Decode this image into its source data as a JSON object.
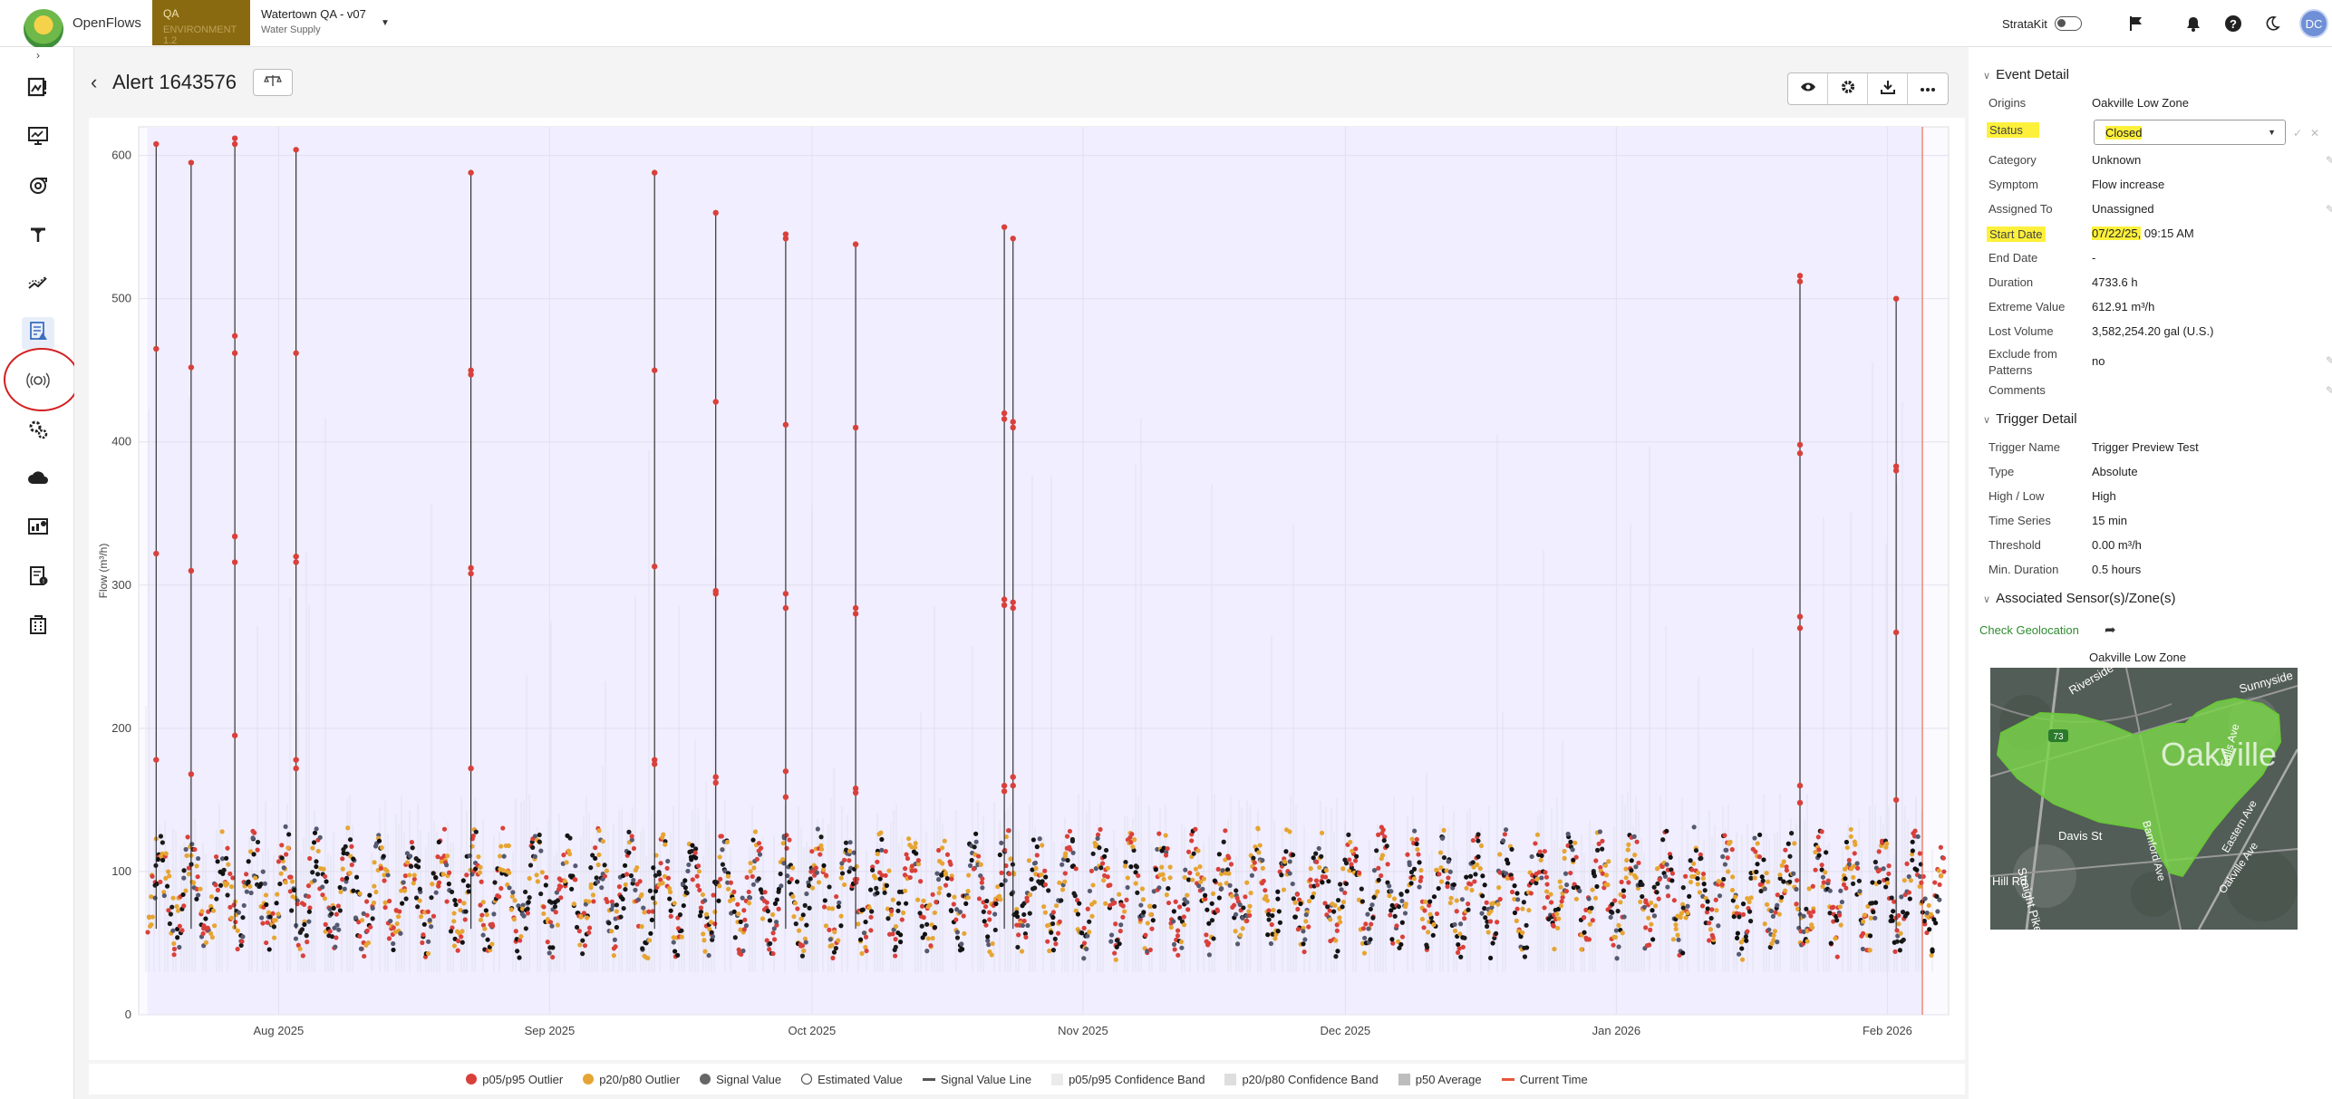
{
  "app": {
    "name": "OpenFlows",
    "env_label": "QA",
    "env_sub": "ENVIRONMENT 1.2",
    "project_title": "Watertown QA - v07",
    "project_sub": "Water Supply"
  },
  "topbar": {
    "stratakit_label": "StrataKit",
    "avatar_initials": "DC"
  },
  "sidebar": {
    "items": [
      "map-alert-icon",
      "monitor-icon",
      "pump-icon",
      "hydrant-icon",
      "trend-icon",
      "alert-report-icon",
      "sensor-icon",
      "settings-icon",
      "cloud-icon",
      "dashboard-icon",
      "report-icon",
      "building-icon"
    ],
    "active_item": "alert-report-icon"
  },
  "page": {
    "title": "Alert 1643576"
  },
  "toolbar": {
    "icons": [
      "eye-icon",
      "gear-icon",
      "download-icon",
      "more-icon"
    ]
  },
  "event_detail": {
    "section_title": "Event Detail",
    "origins_label": "Origins",
    "origins_value": "Oakville Low Zone",
    "status_label": "Status",
    "status_value": "Closed",
    "category_label": "Category",
    "category_value": "Unknown",
    "symptom_label": "Symptom",
    "symptom_value": "Flow increase",
    "assigned_label": "Assigned To",
    "assigned_value": "Unassigned",
    "start_label": "Start Date",
    "start_date": "07/22/25,",
    "start_time": " 09:15 AM",
    "end_label": "End Date",
    "end_value": "-",
    "duration_label": "Duration",
    "duration_value": "4733.6 h",
    "extreme_label": "Extreme Value",
    "extreme_value": "612.91 m³/h",
    "lost_label": "Lost Volume",
    "lost_value": "3,582,254.20 gal (U.S.)",
    "exclude_label_1": "Exclude from",
    "exclude_label_2": "Patterns",
    "exclude_value": "no",
    "comments_label": "Comments"
  },
  "trigger_detail": {
    "section_title": "Trigger Detail",
    "name_label": "Trigger Name",
    "name_value": "Trigger Preview Test",
    "type_label": "Type",
    "type_value": "Absolute",
    "hl_label": "High / Low",
    "hl_value": "High",
    "ts_label": "Time Series",
    "ts_value": "15 min",
    "threshold_label": "Threshold",
    "threshold_value": "0.00 m³/h",
    "min_label": "Min. Duration",
    "min_value": "0.5 hours"
  },
  "associated": {
    "section_title": "Associated Sensor(s)/Zone(s)",
    "geo_link": "Check Geolocation",
    "map_caption": "Oakville Low Zone",
    "map_labels": {
      "zone": "Oakville",
      "s1": "Riverside St",
      "s2": "Davis St",
      "s3": "Straight Pike",
      "s4": "Bamford Ave",
      "s5": "Oakville Ave",
      "s6": "Falls Ave",
      "s7": "Eastern Ave",
      "s8": "Sunnyside",
      "s9": "Hill Rd",
      "route": "73"
    }
  },
  "legend": {
    "items": [
      {
        "label": "p05/p95 Outlier",
        "shape": "dot",
        "color": "#d9403a"
      },
      {
        "label": "p20/p80 Outlier",
        "shape": "dot",
        "color": "#e6a532"
      },
      {
        "label": "Signal Value",
        "shape": "dot",
        "color": "#666666"
      },
      {
        "label": "Estimated Value",
        "shape": "ring",
        "color": "#444444"
      },
      {
        "label": "Signal Value Line",
        "shape": "line",
        "color": "#555555"
      },
      {
        "label": "p05/p95 Confidence Band",
        "shape": "square",
        "color": "#ebebeb"
      },
      {
        "label": "p20/p80 Confidence Band",
        "shape": "square",
        "color": "#dedede"
      },
      {
        "label": "p50 Average",
        "shape": "square",
        "color": "#bdbdbd"
      },
      {
        "label": "Current Time",
        "shape": "line",
        "color": "#e8553a"
      }
    ]
  },
  "chart_data": {
    "type": "scatter",
    "ylabel": "Flow (m³/h)",
    "xlabel": "",
    "ylim": [
      0,
      620
    ],
    "yticks": [
      0,
      100,
      200,
      300,
      400,
      500,
      600
    ],
    "x_start": "2025-07-16",
    "x_end": "2026-02-08",
    "xticks": [
      "Aug 2025",
      "Sep 2025",
      "Oct 2025",
      "Nov 2025",
      "Dec 2025",
      "Jan 2026",
      "Feb 2026"
    ],
    "xtick_dates": [
      "2025-08-01",
      "2025-09-01",
      "2025-10-01",
      "2025-11-01",
      "2025-12-01",
      "2026-01-01",
      "2026-02-01"
    ],
    "event_shading": {
      "start": "2025-07-17",
      "end": "2026-02-05",
      "color": "#f0eeff"
    },
    "baseline_range": [
      45,
      125
    ],
    "spikes": [
      {
        "date": "2025-07-18",
        "values": [
          608,
          465,
          322,
          178
        ]
      },
      {
        "date": "2025-07-22",
        "values": [
          595,
          452,
          310,
          168
        ]
      },
      {
        "date": "2025-07-27",
        "values": [
          612,
          608,
          474,
          462,
          334,
          316,
          195
        ]
      },
      {
        "date": "2025-08-03",
        "values": [
          604,
          462,
          320,
          316,
          178,
          172
        ]
      },
      {
        "date": "2025-08-23",
        "values": [
          588,
          450,
          447,
          312,
          308,
          172
        ]
      },
      {
        "date": "2025-09-13",
        "values": [
          588,
          450,
          313,
          178,
          175
        ]
      },
      {
        "date": "2025-09-20",
        "values": [
          560,
          428,
          296,
          294,
          166,
          162
        ]
      },
      {
        "date": "2025-09-28",
        "values": [
          545,
          542,
          412,
          294,
          284,
          170,
          152
        ]
      },
      {
        "date": "2025-10-06",
        "values": [
          538,
          410,
          284,
          280,
          158,
          155
        ]
      },
      {
        "date": "2025-10-23",
        "values": [
          550,
          420,
          416,
          290,
          286,
          160,
          156
        ]
      },
      {
        "date": "2025-10-24",
        "values": [
          542,
          414,
          410,
          288,
          284,
          166,
          160
        ]
      },
      {
        "date": "2026-01-22",
        "values": [
          516,
          512,
          398,
          392,
          278,
          270,
          160,
          148
        ]
      },
      {
        "date": "2026-02-02",
        "values": [
          500,
          383,
          380,
          267,
          150
        ]
      }
    ]
  }
}
